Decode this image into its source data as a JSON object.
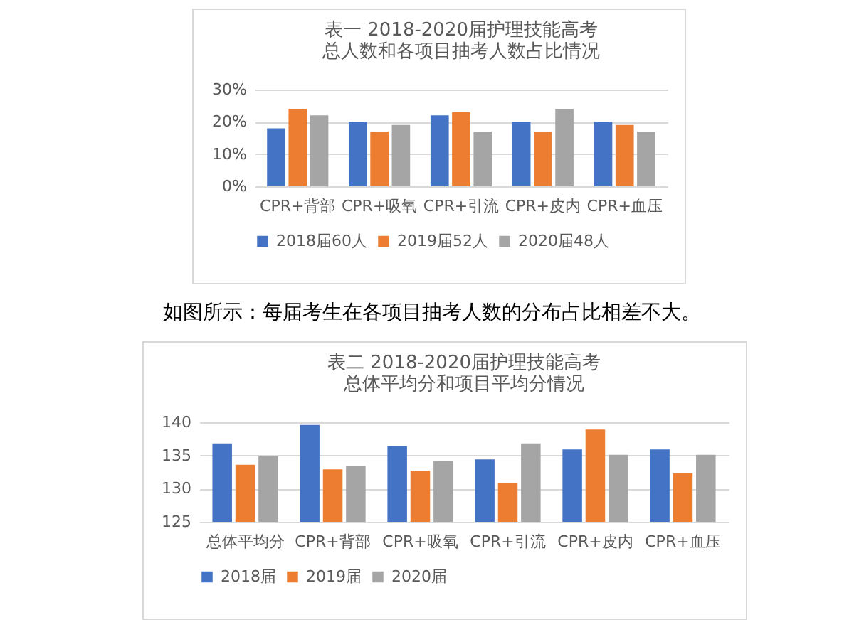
{
  "chart_data": [
    {
      "type": "bar",
      "title": "表一  2018-2020届护理技能高考",
      "subtitle": "总人数和各项目抽考人数占比情况",
      "categories": [
        "CPR+背部",
        "CPR+吸氧",
        "CPR+引流",
        "CPR+皮内",
        "CPR+血压"
      ],
      "series": [
        {
          "name": "2018届60人",
          "color": "#4472c4",
          "values": [
            18,
            20,
            22,
            20,
            20
          ]
        },
        {
          "name": "2019届52人",
          "color": "#ed7d31",
          "values": [
            24,
            17,
            23,
            17,
            19
          ]
        },
        {
          "name": "2020届48人",
          "color": "#a5a5a5",
          "values": [
            22,
            19,
            17,
            24,
            17
          ]
        }
      ],
      "ylim": [
        0,
        30
      ],
      "yticks": [
        {
          "value": 0,
          "label": "0%"
        },
        {
          "value": 10,
          "label": "10%"
        },
        {
          "value": 20,
          "label": "20%"
        },
        {
          "value": 30,
          "label": "30%"
        }
      ],
      "grid": "y",
      "legend": "bottom",
      "annotations": [
        "如图所示：每届考生在各项目抽考人数的分布占比相差不大。"
      ]
    },
    {
      "type": "bar",
      "title": "表二  2018-2020届护理技能高考",
      "subtitle": "总体平均分和项目平均分情况",
      "categories": [
        "总体平均分",
        "CPR+背部",
        "CPR+吸氧",
        "CPR+引流",
        "CPR+皮内",
        "CPR+血压"
      ],
      "series": [
        {
          "name": "2018届",
          "color": "#4472c4",
          "values": [
            136.8,
            139.6,
            136.4,
            134.4,
            135.9,
            135.9
          ]
        },
        {
          "name": "2019届",
          "color": "#ed7d31",
          "values": [
            133.6,
            132.9,
            132.7,
            130.8,
            138.9,
            132.3
          ]
        },
        {
          "name": "2020届",
          "color": "#a5a5a5",
          "values": [
            134.9,
            133.4,
            134.2,
            136.8,
            135.1,
            135.1
          ]
        }
      ],
      "ylim": [
        125,
        140
      ],
      "yticks": [
        125,
        130,
        135,
        140
      ],
      "grid": "y",
      "legend": "bottom"
    }
  ]
}
